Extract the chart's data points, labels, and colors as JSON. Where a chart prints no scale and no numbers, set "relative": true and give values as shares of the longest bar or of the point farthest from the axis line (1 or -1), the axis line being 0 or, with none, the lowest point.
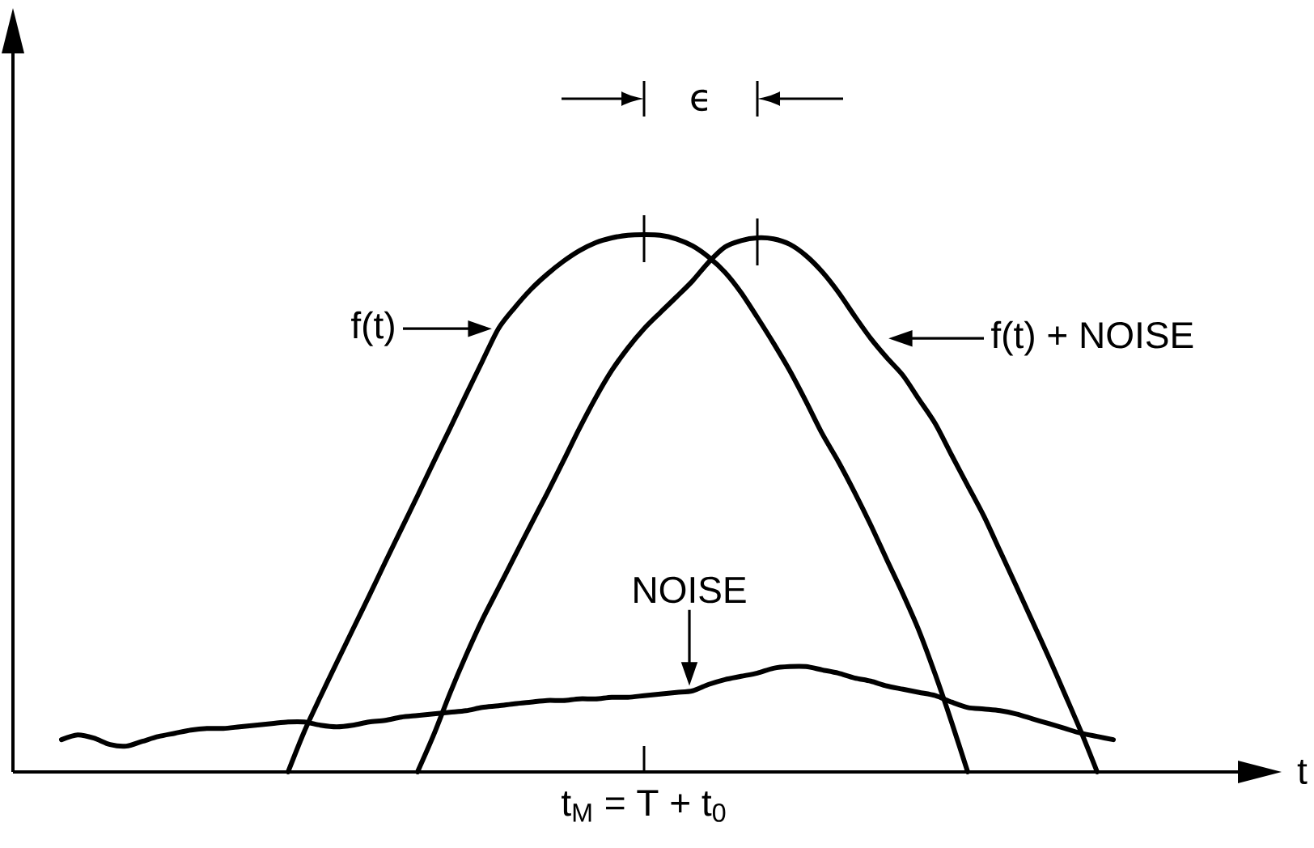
{
  "chart_data": {
    "type": "line",
    "relative": true,
    "xlabel": "t",
    "categories": [
      null,
      null,
      null,
      null,
      null,
      null,
      null,
      null,
      null,
      null,
      null,
      null,
      null,
      null,
      null,
      null,
      null,
      null,
      null,
      null,
      null,
      null,
      null,
      null,
      null,
      null,
      null,
      null,
      null,
      null,
      null,
      null,
      null,
      null,
      null,
      null,
      null,
      null,
      null,
      null,
      null,
      null,
      null,
      null,
      null,
      null,
      null,
      null,
      null,
      null,
      null,
      null,
      null,
      null,
      null,
      null,
      null,
      null,
      null,
      null,
      null,
      null,
      null,
      null,
      null,
      null
    ],
    "series": [
      {
        "name": "f(t)",
        "color": "#000000",
        "values": [
          null,
          null,
          null,
          null,
          null,
          null,
          null,
          null,
          null,
          null,
          null,
          null,
          null,
          null,
          0,
          0.075,
          0.14,
          0.203,
          0.265,
          0.327,
          0.39,
          0.452,
          0.514,
          0.577,
          0.639,
          0.702,
          0.764,
          0.825,
          0.864,
          0.898,
          0.926,
          0.95,
          0.97,
          0.985,
          0.994,
          0.999,
          1,
          0.999,
          0.992,
          0.979,
          0.958,
          0.93,
          0.892,
          0.846,
          0.798,
          0.747,
          0.69,
          0.63,
          0.578,
          0.521,
          0.46,
          0.395,
          0.331,
          0.262,
          0.181,
          0.093,
          0,
          null,
          null,
          null,
          null,
          null,
          null,
          null,
          null,
          null
        ]
      },
      {
        "name": "f(t) + NOISE",
        "color": "#000000",
        "values": [
          null,
          null,
          null,
          null,
          null,
          null,
          null,
          null,
          null,
          null,
          null,
          null,
          null,
          null,
          null,
          null,
          null,
          null,
          null,
          null,
          null,
          null,
          0,
          0.069,
          0.146,
          0.217,
          0.283,
          0.342,
          0.401,
          0.46,
          0.518,
          0.578,
          0.639,
          0.696,
          0.747,
          0.789,
          0.825,
          0.855,
          0.884,
          0.914,
          0.949,
          0.977,
          0.989,
          0.994,
          0.992,
          0.982,
          0.961,
          0.931,
          0.893,
          0.849,
          0.807,
          0.771,
          0.738,
          0.693,
          0.648,
          0.59,
          0.533,
          0.476,
          0.411,
          0.346,
          0.28,
          0.214,
          0.145,
          0.075,
          0,
          null
        ]
      },
      {
        "name": "NOISE",
        "color": "#000000",
        "values": [
          0.06,
          0.069,
          0.063,
          0.051,
          0.048,
          0.057,
          0.066,
          0.072,
          0.078,
          0.081,
          0.081,
          0.084,
          0.087,
          0.09,
          0.093,
          0.093,
          0.087,
          0.084,
          0.087,
          0.093,
          0.096,
          0.102,
          0.105,
          0.108,
          0.111,
          0.114,
          0.12,
          0.123,
          0.127,
          0.13,
          0.133,
          0.133,
          0.136,
          0.136,
          0.139,
          0.139,
          0.142,
          0.145,
          0.148,
          0.151,
          0.163,
          0.172,
          0.178,
          0.184,
          0.193,
          0.196,
          0.196,
          0.19,
          0.184,
          0.175,
          0.169,
          0.16,
          0.154,
          0.148,
          0.142,
          0.13,
          0.12,
          0.117,
          0.114,
          0.108,
          0.099,
          0.09,
          0.081,
          0.072,
          0.066,
          0.06
        ]
      }
    ],
    "annotations": [
      "ϵ",
      "t$_{M}$ = T + t$_{0}$"
    ]
  }
}
